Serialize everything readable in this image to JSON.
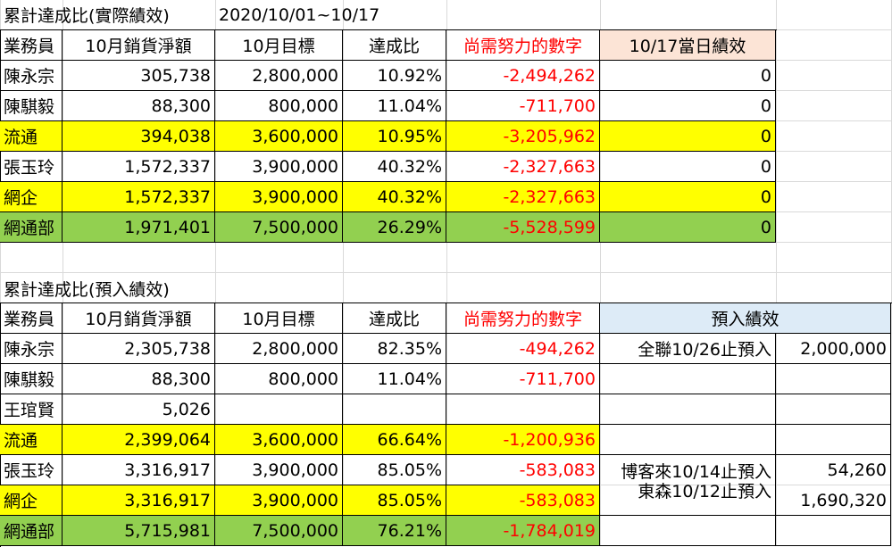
{
  "section1": {
    "title": "累計達成比(實際績效)",
    "date_range": "2020/10/01~10/17",
    "headers": [
      "業務員",
      "10月銷貨淨額",
      "10月目標",
      "達成比",
      "尚需努力的數字",
      "10/17當日績效"
    ],
    "rows": [
      [
        "陳永宗",
        "305,738",
        "2,800,000",
        "10.92%",
        "-2,494,262",
        "0"
      ],
      [
        "陳騏毅",
        "88,300",
        "800,000",
        "11.04%",
        "-711,700",
        "0"
      ],
      [
        "流通",
        "394,038",
        "3,600,000",
        "10.95%",
        "-3,205,962",
        "0"
      ],
      [
        "張玉玲",
        "1,572,337",
        "3,900,000",
        "40.32%",
        "-2,327,663",
        "0"
      ],
      [
        "網企",
        "1,572,337",
        "3,900,000",
        "40.32%",
        "-2,327,663",
        "0"
      ],
      [
        "網通部",
        "1,971,401",
        "7,500,000",
        "26.29%",
        "-5,528,599",
        "0"
      ]
    ]
  },
  "section2": {
    "title": "累計達成比(預入績效)",
    "headers": [
      "業務員",
      "10月銷貨淨額",
      "10月目標",
      "達成比",
      "尚需努力的數字",
      "預入績效"
    ],
    "rows": [
      [
        "陳永宗",
        "2,305,738",
        "2,800,000",
        "82.35%",
        "-494,262"
      ],
      [
        "陳騏毅",
        "88,300",
        "800,000",
        "11.04%",
        "-711,700"
      ],
      [
        "王琯賢",
        "5,026",
        "",
        "",
        ""
      ],
      [
        "流通",
        "2,399,064",
        "3,600,000",
        "66.64%",
        "-1,200,936"
      ],
      [
        "張玉玲",
        "3,316,917",
        "3,900,000",
        "85.05%",
        "-583,083"
      ],
      [
        "網企",
        "3,316,917",
        "3,900,000",
        "85.05%",
        "-583,083"
      ],
      [
        "網通部",
        "5,715,981",
        "7,500,000",
        "76.21%",
        "-1,784,019"
      ]
    ],
    "prepaid": [
      {
        "label": "全聯10/26止預入",
        "value": "2,000,000"
      },
      {
        "label": "博客來10/14止預入",
        "value": "54,260"
      },
      {
        "label": "東森10/12止預入",
        "value": "1,690,320"
      }
    ]
  },
  "colors": {
    "yellow": "#ffff00",
    "green": "#92d050",
    "peach": "#fce4d6",
    "blue": "#ddebf7",
    "red_text": "#ff0000"
  }
}
